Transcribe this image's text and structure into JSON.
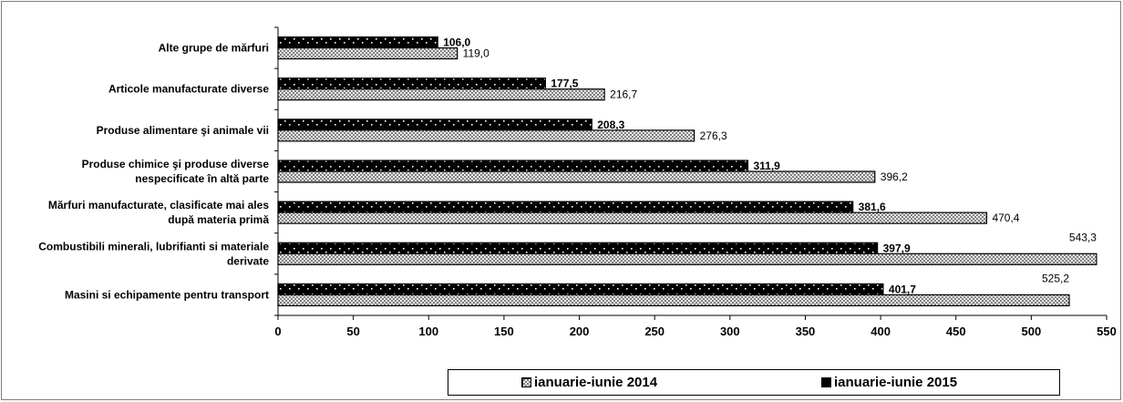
{
  "chart_data": {
    "type": "bar",
    "orientation": "horizontal",
    "categories": [
      [
        "Alte grupe de mărfuri"
      ],
      [
        "Articole manufacturate diverse"
      ],
      [
        "Produse alimentare şi animale vii"
      ],
      [
        "Produse chimice şi produse diverse",
        "nespecificate în altă parte"
      ],
      [
        "Mărfuri manufacturate, clasificate mai ales",
        "după materia primă"
      ],
      [
        "Combustibili minerali, lubrifianti si materiale",
        "derivate"
      ],
      [
        "Masini si echipamente pentru transport"
      ]
    ],
    "series": [
      {
        "name": "ianuarie-iunie 2015",
        "values": [
          106.0,
          177.5,
          208.3,
          311.9,
          381.6,
          397.9,
          401.7
        ],
        "labels": [
          "106,0",
          "177,5",
          "208,3",
          "311,9",
          "381,6",
          "397,9",
          "401,7"
        ],
        "fill": "#000000",
        "pattern": "dark-dotted"
      },
      {
        "name": "ianuarie-iunie 2014",
        "values": [
          119.0,
          216.7,
          276.3,
          396.2,
          470.4,
          543.3,
          525.2
        ],
        "labels": [
          "119,0",
          "216,7",
          "276,3",
          "396,2",
          "470,4",
          "543,3",
          "525,2"
        ],
        "fill": "#ffffff",
        "pattern": "light-crosshatch"
      }
    ],
    "xlim": [
      0,
      550
    ],
    "xticks": [
      0,
      50,
      100,
      150,
      200,
      250,
      300,
      350,
      400,
      450,
      500,
      550
    ],
    "grid": false,
    "legend_position": "bottom"
  },
  "legend": {
    "items": [
      {
        "label": "ianuarie-iunie 2014",
        "swatch_color": "#ffffff",
        "pattern": "light-crosshatch"
      },
      {
        "label": "ianuarie-iunie 2015",
        "swatch_color": "#000000",
        "pattern": "dark-dotted"
      }
    ]
  }
}
